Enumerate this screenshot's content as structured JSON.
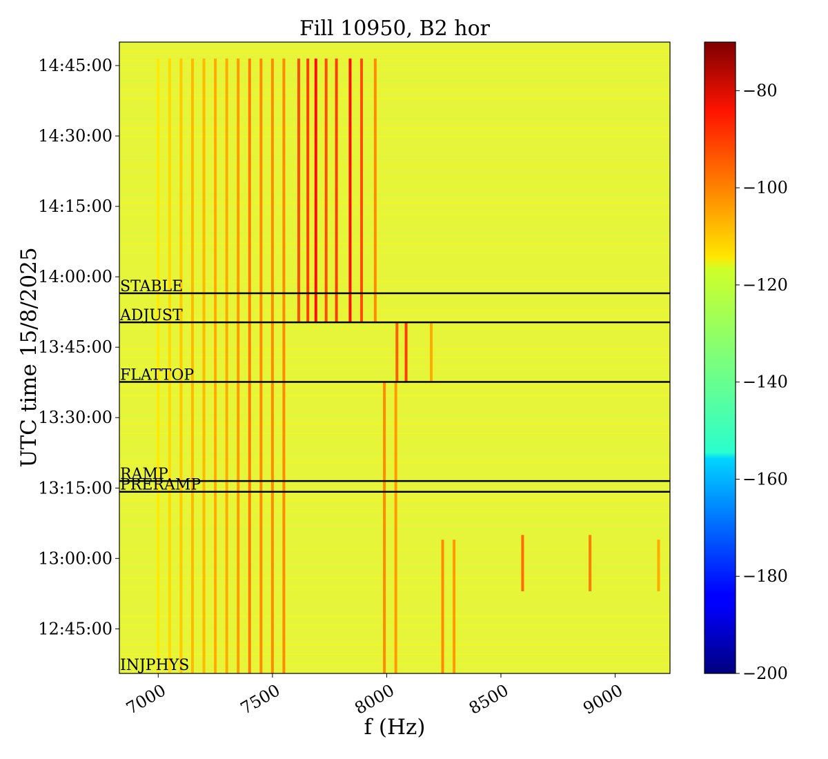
{
  "chart_data": {
    "type": "heatmap",
    "title": "Fill 10950, B2 hor",
    "xlabel": "f (Hz)",
    "ylabel": "UTC time 15/8/2025",
    "xlim": [
      6830,
      9240
    ],
    "ylim_minutes_of_day": [
      755.5,
      890.0
    ],
    "x_ticks": [
      {
        "value": 7000,
        "label": "7000"
      },
      {
        "value": 7500,
        "label": "7500"
      },
      {
        "value": 8000,
        "label": "8000"
      },
      {
        "value": 8500,
        "label": "8500"
      },
      {
        "value": 9000,
        "label": "9000"
      }
    ],
    "y_ticks": [
      {
        "minutes": 765,
        "label": "12:45:00"
      },
      {
        "minutes": 780,
        "label": "13:00:00"
      },
      {
        "minutes": 795,
        "label": "13:15:00"
      },
      {
        "minutes": 810,
        "label": "13:30:00"
      },
      {
        "minutes": 825,
        "label": "13:45:00"
      },
      {
        "minutes": 840,
        "label": "14:00:00"
      },
      {
        "minutes": 855,
        "label": "14:15:00"
      },
      {
        "minutes": 870,
        "label": "14:30:00"
      },
      {
        "minutes": 885,
        "label": "14:45:00"
      }
    ],
    "colorbar": {
      "colormap": "jet",
      "vmin": -200,
      "vmax": -70,
      "ticks": [
        {
          "value": -80,
          "label": "−80"
        },
        {
          "value": -100,
          "label": "−100"
        },
        {
          "value": -120,
          "label": "−120"
        },
        {
          "value": -140,
          "label": "−140"
        },
        {
          "value": -160,
          "label": "−160"
        },
        {
          "value": -180,
          "label": "−180"
        },
        {
          "value": -200,
          "label": "−200"
        }
      ]
    },
    "phase_markers": [
      {
        "label": "STABLE",
        "minutes": 836.5
      },
      {
        "label": "ADJUST",
        "minutes": 830.3
      },
      {
        "label": "FLATTOP",
        "minutes": 817.6
      },
      {
        "label": "RAMP",
        "minutes": 796.5
      },
      {
        "label": "PRERAMP",
        "minutes": 794.2
      },
      {
        "label": "INJPHYS",
        "minutes": 755.8
      }
    ],
    "background_level": -122,
    "lines": [
      {
        "f": 7000,
        "start": 755.5,
        "end": 886.5,
        "level": -116
      },
      {
        "f": 7050,
        "start": 755.5,
        "end": 886.5,
        "level": -114
      },
      {
        "f": 7100,
        "start": 755.5,
        "end": 886.5,
        "level": -112
      },
      {
        "f": 7150,
        "start": 755.5,
        "end": 886.5,
        "level": -110
      },
      {
        "f": 7200,
        "start": 755.5,
        "end": 886.5,
        "level": -110
      },
      {
        "f": 7250,
        "start": 755.5,
        "end": 886.5,
        "level": -108
      },
      {
        "f": 7300,
        "start": 755.5,
        "end": 886.5,
        "level": -108
      },
      {
        "f": 7350,
        "start": 755.5,
        "end": 886.5,
        "level": -106
      },
      {
        "f": 7400,
        "start": 755.5,
        "end": 886.5,
        "level": -102
      },
      {
        "f": 7450,
        "start": 755.5,
        "end": 886.5,
        "level": -104
      },
      {
        "f": 7500,
        "start": 755.5,
        "end": 886.5,
        "level": -104
      },
      {
        "f": 7550,
        "start": 755.5,
        "end": 886.5,
        "level": -104
      },
      {
        "f": 7615,
        "start": 830.3,
        "end": 886.5,
        "level": -96
      },
      {
        "f": 7655,
        "start": 830.3,
        "end": 886.5,
        "level": -94
      },
      {
        "f": 7690,
        "start": 830.3,
        "end": 886.5,
        "level": -88
      },
      {
        "f": 7735,
        "start": 830.3,
        "end": 886.5,
        "level": -96
      },
      {
        "f": 7780,
        "start": 830.3,
        "end": 886.5,
        "level": -94
      },
      {
        "f": 7840,
        "start": 830.3,
        "end": 886.5,
        "level": -88
      },
      {
        "f": 7890,
        "start": 830.3,
        "end": 886.5,
        "level": -96
      },
      {
        "f": 7950,
        "start": 830.3,
        "end": 886.5,
        "level": -104
      },
      {
        "f": 8045,
        "start": 817.6,
        "end": 830.3,
        "level": -98
      },
      {
        "f": 8085,
        "start": 817.6,
        "end": 830.3,
        "level": -94
      },
      {
        "f": 8195,
        "start": 817.6,
        "end": 830.3,
        "level": -108
      },
      {
        "f": 7990,
        "start": 755.5,
        "end": 817.6,
        "level": -104
      },
      {
        "f": 8040,
        "start": 755.5,
        "end": 817.6,
        "level": -106
      },
      {
        "f": 8245,
        "start": 755.5,
        "end": 784.0,
        "level": -104
      },
      {
        "f": 8295,
        "start": 755.5,
        "end": 784.0,
        "level": -106
      },
      {
        "f": 8595,
        "start": 773.0,
        "end": 785.0,
        "level": -100
      },
      {
        "f": 8890,
        "start": 773.0,
        "end": 785.0,
        "level": -102
      },
      {
        "f": 9190,
        "start": 773.0,
        "end": 784.0,
        "level": -108
      }
    ]
  }
}
